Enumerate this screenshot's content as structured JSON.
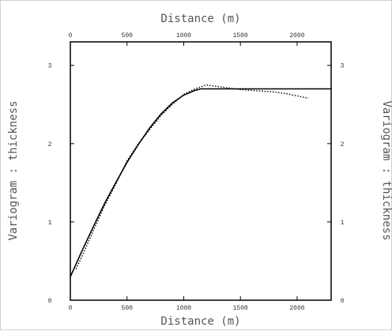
{
  "chart_data": {
    "type": "line",
    "xlabel_top": "Distance (m)",
    "xlabel_bottom": "Distance (m)",
    "ylabel_left": "Variogram : thickness",
    "ylabel_right": "Variogram : thickness",
    "xlim": [
      0,
      2300
    ],
    "ylim": [
      0,
      3.3
    ],
    "xticks": [
      0,
      500,
      1000,
      1500,
      2000
    ],
    "yticks": [
      0,
      1,
      2,
      3
    ],
    "xtick_labels": [
      "0",
      "500",
      "1000",
      "1500",
      "2000"
    ],
    "ytick_labels": [
      "0",
      "1",
      "2",
      "3"
    ],
    "grid": false,
    "series": [
      {
        "style": "solid",
        "color": "#000000",
        "x": [
          0,
          100,
          200,
          300,
          400,
          500,
          600,
          700,
          800,
          900,
          1000,
          1100,
          1150,
          1200,
          1500,
          2000,
          2300
        ],
        "y": [
          0.3,
          0.62,
          0.93,
          1.23,
          1.5,
          1.76,
          1.99,
          2.2,
          2.38,
          2.52,
          2.62,
          2.68,
          2.7,
          2.7,
          2.7,
          2.7,
          2.7
        ]
      },
      {
        "style": "dotted",
        "color": "#000000",
        "x": [
          50,
          100,
          200,
          300,
          400,
          500,
          600,
          700,
          800,
          900,
          1000,
          1100,
          1200,
          1300,
          1400,
          1500,
          1600,
          1700,
          1800,
          1900,
          2000,
          2100
        ],
        "y": [
          0.4,
          0.55,
          0.88,
          1.2,
          1.48,
          1.78,
          2.0,
          2.18,
          2.36,
          2.5,
          2.63,
          2.7,
          2.75,
          2.73,
          2.71,
          2.69,
          2.68,
          2.67,
          2.66,
          2.64,
          2.61,
          2.58
        ]
      }
    ]
  }
}
